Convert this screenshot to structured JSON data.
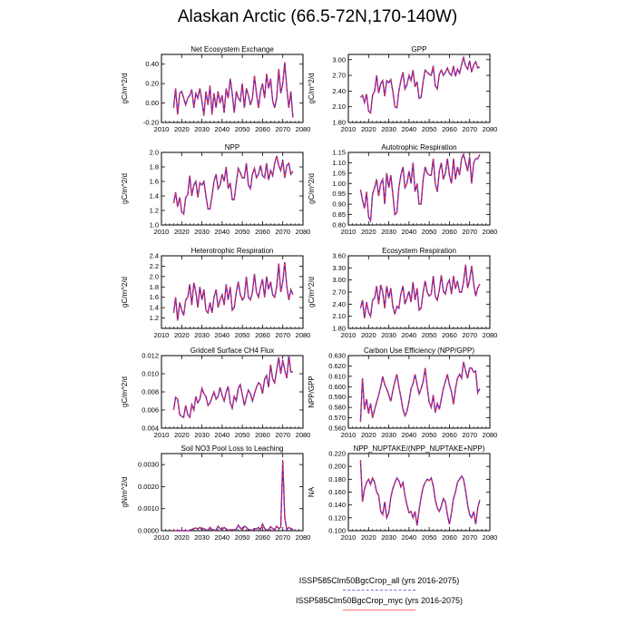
{
  "figure": {
    "title": "Alaskan Arctic (66.5-72N,170-140W)",
    "legend": [
      {
        "label": "ISSP585Clm50BgcCrop_all (yrs 2016-2075)",
        "color": "#6f6fe0",
        "dash": true
      },
      {
        "label": "ISSP585Clm50BgcCrop_myc (yrs 2016-2075)",
        "color": "#ff7070",
        "dash": false
      }
    ],
    "colors": {
      "line": "#6a1fb0",
      "dash": "#ff3030"
    }
  },
  "chart_data": [
    {
      "type": "line",
      "title": "Net Ecosystem Exchange",
      "ylabel": "gC/m^2/d",
      "xlim": [
        2010,
        2080
      ],
      "xticks": [
        2010,
        2020,
        2030,
        2040,
        2050,
        2060,
        2070,
        2080
      ],
      "xticklabels": [
        "2010",
        "2020",
        "2030",
        "2040",
        "2050",
        "2060",
        "2070",
        "2080"
      ],
      "ylim": [
        -0.2,
        0.5
      ],
      "yticks": [
        -0.2,
        0.0,
        0.2,
        0.4
      ],
      "yticklabels": [
        "-0.20",
        "0.00",
        "0.20",
        "0.40"
      ],
      "x_start": 2016,
      "series": [
        {
          "values": [
            -0.05,
            0.15,
            -0.12,
            0.1,
            0.12,
            0.05,
            -0.02,
            0.05,
            0.08,
            0.14,
            -0.05,
            0.1,
            0.05,
            0.15,
            0.02,
            -0.13,
            0.12,
            -0.02,
            0.18,
            -0.12,
            0.1,
            -0.05,
            0.12,
            0.0,
            0.08,
            -0.1,
            0.15,
            0.05,
            0.25,
            0.1,
            -0.1,
            0.12,
            0.05,
            0.02,
            0.2,
            -0.05,
            0.15,
            0.08,
            -0.02,
            0.05,
            0.28,
            0.1,
            -0.05,
            0.12,
            0.2,
            0.05,
            0.3,
            0.15,
            0.25,
            0.02,
            -0.05,
            0.05,
            0.35,
            0.1,
            0.2,
            0.42,
            0.15,
            -0.05,
            0.12,
            -0.15
          ]
        }
      ]
    },
    {
      "type": "line",
      "title": "GPP",
      "ylabel": "gC/m^2/d",
      "xlim": [
        2010,
        2080
      ],
      "xticks": [
        2010,
        2020,
        2030,
        2040,
        2050,
        2060,
        2070,
        2080
      ],
      "xticklabels": [
        "2010",
        "2020",
        "2030",
        "2040",
        "2050",
        "2060",
        "2070",
        "2080"
      ],
      "ylim": [
        1.8,
        3.1
      ],
      "yticks": [
        1.8,
        2.1,
        2.4,
        2.7,
        3.0
      ],
      "yticklabels": [
        "1.80",
        "2.10",
        "2.40",
        "2.70",
        "3.00"
      ],
      "x_start": 2016,
      "series": [
        {
          "values": [
            2.28,
            2.32,
            2.18,
            2.34,
            2.02,
            1.98,
            2.32,
            2.4,
            2.7,
            2.36,
            2.54,
            2.6,
            2.3,
            2.6,
            2.56,
            2.62,
            2.4,
            2.1,
            2.08,
            2.4,
            2.6,
            2.76,
            2.44,
            2.52,
            2.7,
            2.6,
            2.8,
            2.48,
            2.58,
            2.26,
            2.28,
            2.58,
            2.8,
            2.76,
            2.72,
            2.7,
            2.88,
            2.5,
            2.44,
            2.72,
            2.8,
            2.7,
            2.76,
            2.84,
            2.74,
            2.7,
            2.88,
            2.68,
            2.82,
            2.74,
            2.9,
            3.04,
            2.88,
            2.82,
            2.98,
            2.76,
            2.9,
            2.96,
            2.84,
            2.86
          ]
        }
      ]
    },
    {
      "type": "line",
      "title": "NPP",
      "ylabel": "gC/m^2/d",
      "xlim": [
        2010,
        2080
      ],
      "xticks": [
        2010,
        2020,
        2030,
        2040,
        2050,
        2060,
        2070,
        2080
      ],
      "xticklabels": [
        "2010",
        "2020",
        "2030",
        "2040",
        "2050",
        "2060",
        "2070",
        "2080"
      ],
      "ylim": [
        1.0,
        2.0
      ],
      "yticks": [
        1.0,
        1.2,
        1.4,
        1.6,
        1.8,
        2.0
      ],
      "yticklabels": [
        "1.0",
        "1.2",
        "1.4",
        "1.6",
        "1.8",
        "2.0"
      ],
      "x_start": 2016,
      "series": [
        {
          "values": [
            1.3,
            1.45,
            1.25,
            1.38,
            1.18,
            1.15,
            1.38,
            1.42,
            1.68,
            1.4,
            1.55,
            1.6,
            1.38,
            1.58,
            1.55,
            1.6,
            1.4,
            1.22,
            1.22,
            1.4,
            1.6,
            1.7,
            1.5,
            1.55,
            1.7,
            1.6,
            1.8,
            1.5,
            1.58,
            1.35,
            1.35,
            1.58,
            1.78,
            1.72,
            1.65,
            1.65,
            1.85,
            1.55,
            1.5,
            1.7,
            1.78,
            1.65,
            1.7,
            1.82,
            1.68,
            1.65,
            1.85,
            1.62,
            1.75,
            1.68,
            1.85,
            1.95,
            1.82,
            1.75,
            1.9,
            1.65,
            1.82,
            1.85,
            1.7,
            1.74
          ]
        }
      ]
    },
    {
      "type": "line",
      "title": "Autotrophic Respiration",
      "ylabel": "gC/m^2/d",
      "xlim": [
        2010,
        2080
      ],
      "xticks": [
        2010,
        2020,
        2030,
        2040,
        2050,
        2060,
        2070,
        2080
      ],
      "xticklabels": [
        "2010",
        "2020",
        "2030",
        "2040",
        "2050",
        "2060",
        "2070",
        "2080"
      ],
      "ylim": [
        0.8,
        1.15
      ],
      "yticks": [
        0.8,
        0.85,
        0.9,
        0.95,
        1.0,
        1.05,
        1.1,
        1.15
      ],
      "yticklabels": [
        "0.80",
        "0.85",
        "0.90",
        "0.95",
        "1.00",
        "1.05",
        "1.10",
        "1.15"
      ],
      "x_start": 2016,
      "series": [
        {
          "values": [
            0.97,
            0.92,
            0.88,
            0.96,
            0.84,
            0.82,
            0.95,
            0.98,
            1.02,
            0.94,
            1.0,
            1.02,
            0.9,
            1.05,
            0.98,
            1.04,
            0.95,
            0.85,
            0.86,
            0.98,
            1.04,
            1.08,
            0.98,
            1.0,
            1.06,
            1.0,
            1.1,
            0.96,
            1.0,
            0.9,
            0.9,
            1.02,
            1.08,
            1.05,
            1.04,
            1.04,
            1.12,
            1.0,
            0.96,
            1.06,
            1.1,
            1.02,
            1.05,
            1.12,
            1.04,
            1.0,
            1.12,
            1.02,
            1.08,
            1.04,
            1.12,
            1.14,
            1.1,
            1.06,
            1.13,
            1.0,
            1.1,
            1.12,
            1.12,
            1.14
          ]
        }
      ]
    },
    {
      "type": "line",
      "title": "Heterotrophic Respiration",
      "ylabel": "gC/m^2/d",
      "xlim": [
        2010,
        2080
      ],
      "xticks": [
        2010,
        2020,
        2030,
        2040,
        2050,
        2060,
        2070,
        2080
      ],
      "xticklabels": [
        "2010",
        "2020",
        "2030",
        "2040",
        "2050",
        "2060",
        "2070",
        "2080"
      ],
      "ylim": [
        1.0,
        2.4
      ],
      "yticks": [
        1.2,
        1.4,
        1.6,
        1.8,
        2.0,
        2.2,
        2.4
      ],
      "yticklabels": [
        "1.2",
        "1.4",
        "1.6",
        "1.8",
        "2.0",
        "2.2",
        "2.4"
      ],
      "x_start": 2016,
      "series": [
        {
          "values": [
            1.3,
            1.6,
            1.15,
            1.5,
            1.35,
            1.25,
            1.55,
            1.6,
            1.85,
            1.45,
            1.88,
            1.7,
            1.4,
            1.8,
            1.55,
            1.75,
            1.35,
            1.3,
            1.5,
            1.3,
            1.6,
            1.75,
            1.4,
            1.55,
            1.65,
            1.45,
            1.85,
            1.55,
            1.8,
            1.35,
            1.4,
            1.7,
            1.9,
            1.65,
            1.55,
            1.6,
            2.0,
            1.6,
            1.55,
            1.7,
            2.05,
            1.7,
            1.6,
            1.8,
            1.95,
            1.6,
            2.0,
            1.75,
            1.9,
            1.65,
            1.6,
            1.8,
            2.25,
            1.7,
            1.9,
            2.28,
            1.8,
            1.55,
            1.75,
            1.65
          ]
        }
      ]
    },
    {
      "type": "line",
      "title": "Ecosystem Respiration",
      "ylabel": "gC/m^2/d",
      "xlim": [
        2010,
        2080
      ],
      "xticks": [
        2010,
        2020,
        2030,
        2040,
        2050,
        2060,
        2070,
        2080
      ],
      "xticklabels": [
        "2010",
        "2020",
        "2030",
        "2040",
        "2050",
        "2060",
        "2070",
        "2080"
      ],
      "ylim": [
        1.8,
        3.6
      ],
      "yticks": [
        1.8,
        2.1,
        2.4,
        2.7,
        3.0,
        3.3,
        3.6
      ],
      "yticklabels": [
        "1.80",
        "2.10",
        "2.40",
        "2.70",
        "3.00",
        "3.30",
        "3.60"
      ],
      "x_start": 2016,
      "series": [
        {
          "values": [
            2.3,
            2.5,
            2.05,
            2.45,
            2.2,
            2.1,
            2.5,
            2.55,
            2.85,
            2.4,
            2.88,
            2.7,
            2.3,
            2.85,
            2.55,
            2.8,
            2.35,
            2.15,
            2.35,
            2.3,
            2.65,
            2.85,
            2.4,
            2.55,
            2.72,
            2.45,
            2.95,
            2.5,
            2.8,
            2.25,
            2.3,
            2.7,
            2.98,
            2.7,
            2.6,
            2.65,
            3.1,
            2.6,
            2.5,
            2.75,
            3.12,
            2.72,
            2.65,
            2.9,
            3.0,
            2.65,
            3.1,
            2.78,
            2.98,
            2.7,
            2.7,
            2.95,
            3.38,
            2.8,
            3.0,
            3.35,
            2.9,
            2.6,
            2.8,
            2.9
          ]
        }
      ]
    },
    {
      "type": "line",
      "title": "Gridcell Surface CH4 Flux",
      "ylabel": "gC/m^2/d",
      "xlim": [
        2010,
        2080
      ],
      "xticks": [
        2010,
        2020,
        2030,
        2040,
        2050,
        2060,
        2070,
        2080
      ],
      "xticklabels": [
        "2010",
        "2020",
        "2030",
        "2040",
        "2050",
        "2060",
        "2070",
        "2080"
      ],
      "ylim": [
        0.004,
        0.012
      ],
      "yticks": [
        0.004,
        0.006,
        0.008,
        0.01,
        0.012
      ],
      "yticklabels": [
        "0.004",
        "0.006",
        "0.008",
        "0.010",
        "0.012"
      ],
      "x_start": 2016,
      "series": [
        {
          "values": [
            0.006,
            0.0074,
            0.0072,
            0.0055,
            0.0053,
            0.0052,
            0.0065,
            0.0055,
            0.0052,
            0.0066,
            0.006,
            0.0075,
            0.0068,
            0.0072,
            0.0084,
            0.0078,
            0.0075,
            0.0065,
            0.0068,
            0.0074,
            0.008,
            0.0072,
            0.0075,
            0.0085,
            0.0076,
            0.007,
            0.008,
            0.0086,
            0.0068,
            0.0062,
            0.0075,
            0.007,
            0.0084,
            0.0088,
            0.0077,
            0.0065,
            0.0074,
            0.0082,
            0.0078,
            0.007,
            0.0078,
            0.0085,
            0.009,
            0.0088,
            0.0078,
            0.0094,
            0.0098,
            0.0085,
            0.011,
            0.0094,
            0.009,
            0.0104,
            0.0118,
            0.01,
            0.0115,
            0.0104,
            0.0095,
            0.012,
            0.0102,
            0.0102
          ]
        }
      ]
    },
    {
      "type": "line",
      "title": "Carbon Use Efficiency (NPP/GPP)",
      "ylabel": "NPP/GPP",
      "xlim": [
        2010,
        2080
      ],
      "xticks": [
        2010,
        2020,
        2030,
        2040,
        2050,
        2060,
        2070,
        2080
      ],
      "xticklabels": [
        "2010",
        "2020",
        "2030",
        "2040",
        "2050",
        "2060",
        "2070",
        "2080"
      ],
      "ylim": [
        0.56,
        0.63
      ],
      "yticks": [
        0.56,
        0.57,
        0.58,
        0.59,
        0.6,
        0.61,
        0.62,
        0.63
      ],
      "yticklabels": [
        "0.560",
        "0.570",
        "0.580",
        "0.590",
        "0.600",
        "0.610",
        "0.620",
        "0.630"
      ],
      "x_start": 2016,
      "series": [
        {
          "values": [
            0.566,
            0.608,
            0.578,
            0.588,
            0.574,
            0.584,
            0.57,
            0.578,
            0.585,
            0.592,
            0.6,
            0.61,
            0.602,
            0.598,
            0.592,
            0.586,
            0.596,
            0.605,
            0.612,
            0.6,
            0.59,
            0.578,
            0.572,
            0.576,
            0.586,
            0.598,
            0.603,
            0.612,
            0.602,
            0.593,
            0.598,
            0.605,
            0.618,
            0.6,
            0.585,
            0.58,
            0.592,
            0.575,
            0.584,
            0.578,
            0.588,
            0.598,
            0.605,
            0.612,
            0.602,
            0.595,
            0.583,
            0.598,
            0.608,
            0.612,
            0.608,
            0.624,
            0.615,
            0.608,
            0.618,
            0.618,
            0.614,
            0.615,
            0.594,
            0.598
          ]
        }
      ]
    },
    {
      "type": "line",
      "title": "Soil NO3 Pool Loss to Leaching",
      "ylabel": "gN/m^2/d",
      "xlim": [
        2010,
        2080
      ],
      "xticks": [
        2010,
        2020,
        2030,
        2040,
        2050,
        2060,
        2070,
        2080
      ],
      "xticklabels": [
        "2010",
        "2020",
        "2030",
        "2040",
        "2050",
        "2060",
        "2070",
        "2080"
      ],
      "ylim": [
        0.0,
        0.0035
      ],
      "yticks": [
        0.0,
        0.001,
        0.002,
        0.003
      ],
      "yticklabels": [
        "0.0000",
        "0.0010",
        "0.0020",
        "0.0030"
      ],
      "x_start": 2016,
      "series": [
        {
          "values": [
            0,
            0,
            0,
            0,
            0,
            0,
            0,
            0,
            0,
            5e-05,
            0.0001,
            0.00012,
            8e-05,
            0.00015,
            5e-05,
            0.0001,
            3e-05,
            2e-05,
            0.00015,
            5e-05,
            2e-05,
            3e-05,
            0.0002,
            0.0001,
            5e-05,
            0.00015,
            8e-05,
            3e-05,
            2e-05,
            5e-05,
            2e-05,
            8e-05,
            0.00025,
            0.00012,
            5e-05,
            0.0002,
            0.00015,
            5e-05,
            3e-05,
            2e-05,
            0.0001,
            8e-05,
            0.00015,
            5e-05,
            0.0003,
            0.0001,
            2e-05,
            5e-05,
            0.00018,
            0.0001,
            5e-05,
            0.0002,
            0.0001,
            0.00015,
            0.0032,
            0.0006,
            5e-05,
            0.00015,
            0.0001,
            5e-05
          ]
        }
      ]
    },
    {
      "type": "line",
      "title": "NPP_NUPTAKE/(NPP_NUPTAKE+NPP)",
      "ylabel": "NA",
      "xlim": [
        2010,
        2080
      ],
      "xticks": [
        2010,
        2020,
        2030,
        2040,
        2050,
        2060,
        2070,
        2080
      ],
      "xticklabels": [
        "2010",
        "2020",
        "2030",
        "2040",
        "2050",
        "2060",
        "2070",
        "2080"
      ],
      "ylim": [
        0.1,
        0.22
      ],
      "yticks": [
        0.1,
        0.12,
        0.14,
        0.16,
        0.18,
        0.2,
        0.22
      ],
      "yticklabels": [
        "0.100",
        "0.120",
        "0.140",
        "0.160",
        "0.180",
        "0.200",
        "0.220"
      ],
      "x_start": 2016,
      "series": [
        {
          "values": [
            0.21,
            0.145,
            0.165,
            0.175,
            0.18,
            0.172,
            0.182,
            0.175,
            0.16,
            0.155,
            0.13,
            0.125,
            0.145,
            0.12,
            0.128,
            0.152,
            0.165,
            0.175,
            0.182,
            0.178,
            0.168,
            0.175,
            0.155,
            0.14,
            0.128,
            0.13,
            0.12,
            0.13,
            0.108,
            0.132,
            0.152,
            0.168,
            0.175,
            0.18,
            0.178,
            0.182,
            0.17,
            0.148,
            0.135,
            0.13,
            0.138,
            0.15,
            0.145,
            0.125,
            0.11,
            0.128,
            0.15,
            0.16,
            0.175,
            0.18,
            0.185,
            0.18,
            0.162,
            0.14,
            0.125,
            0.12,
            0.13,
            0.11,
            0.135,
            0.148
          ]
        }
      ]
    }
  ]
}
